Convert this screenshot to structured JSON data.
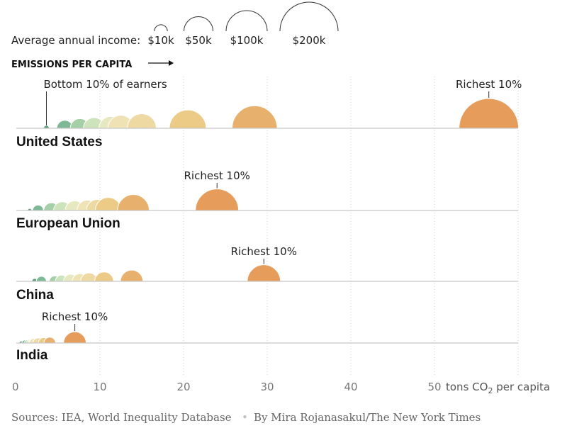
{
  "legend": {
    "label": "Average annual income:",
    "items": [
      {
        "label": "$10k",
        "income": 10
      },
      {
        "label": "$50k",
        "income": 50
      },
      {
        "label": "$100k",
        "income": 100
      },
      {
        "label": "$200k",
        "income": 200
      }
    ]
  },
  "emissions_label": "EMISSIONS PER CAPITA",
  "chart_data": {
    "type": "scatter",
    "description_encoding": "each semicircle is an income decile; x = tons CO2 per capita, radius = average annual income",
    "xlabel": "tons CO2 per capita",
    "xlim": [
      0,
      60
    ],
    "x_ticks": [
      "0",
      "10",
      "20",
      "30",
      "40",
      "50"
    ],
    "tick_values": [
      0,
      10,
      20,
      30,
      40,
      50,
      60
    ],
    "unit_label": {
      "prefix": "tons CO",
      "subscript": "2",
      "suffix": " per capita"
    },
    "grid": true,
    "colors": [
      "#5f9e7a",
      "#7fb895",
      "#a5cfa6",
      "#cde3bc",
      "#e6e8c0",
      "#efe3b5",
      "#eed9a2",
      "#eccb86",
      "#e8b06d",
      "#e69c5a"
    ],
    "series": [
      {
        "name": "United States",
        "annotations": [
          {
            "text": "Bottom 10% of earners",
            "decile": 0
          },
          {
            "text": "Richest 10%",
            "decile": 9
          }
        ],
        "deciles": [
          {
            "x": 3.6,
            "income": 2
          },
          {
            "x": 5.8,
            "income": 15
          },
          {
            "x": 7.6,
            "income": 22
          },
          {
            "x": 9.3,
            "income": 27
          },
          {
            "x": 11.3,
            "income": 33
          },
          {
            "x": 12.5,
            "income": 40
          },
          {
            "x": 15.0,
            "income": 50
          },
          {
            "x": 20.5,
            "income": 80
          },
          {
            "x": 28.5,
            "income": 120
          },
          {
            "x": 56.5,
            "income": 210
          }
        ]
      },
      {
        "name": "European Union",
        "annotations": [
          {
            "text": "Richest 10%",
            "decile": 9
          }
        ],
        "deciles": [
          {
            "x": 1.6,
            "income": 1
          },
          {
            "x": 2.6,
            "income": 7
          },
          {
            "x": 4.2,
            "income": 14
          },
          {
            "x": 5.5,
            "income": 18
          },
          {
            "x": 7.0,
            "income": 22
          },
          {
            "x": 8.5,
            "income": 25
          },
          {
            "x": 9.7,
            "income": 29
          },
          {
            "x": 11.0,
            "income": 40
          },
          {
            "x": 14.0,
            "income": 60
          },
          {
            "x": 24.0,
            "income": 110
          }
        ]
      },
      {
        "name": "China",
        "annotations": [
          {
            "text": "Richest 10%",
            "decile": 9
          }
        ],
        "deciles": [
          {
            "x": 2.2,
            "income": 2
          },
          {
            "x": 3.0,
            "income": 6
          },
          {
            "x": 4.6,
            "income": 7
          },
          {
            "x": 5.4,
            "income": 9
          },
          {
            "x": 6.5,
            "income": 12
          },
          {
            "x": 7.6,
            "income": 14
          },
          {
            "x": 8.7,
            "income": 17
          },
          {
            "x": 10.5,
            "income": 21
          },
          {
            "x": 13.8,
            "income": 30
          },
          {
            "x": 29.6,
            "income": 65
          }
        ]
      },
      {
        "name": "India",
        "annotations": [
          {
            "text": "Richest 10%",
            "decile": 9
          }
        ],
        "deciles": [
          {
            "x": 0.6,
            "income": 1
          },
          {
            "x": 1.0,
            "income": 2
          },
          {
            "x": 1.4,
            "income": 3
          },
          {
            "x": 1.7,
            "income": 4
          },
          {
            "x": 1.9,
            "income": 4
          },
          {
            "x": 2.1,
            "income": 5
          },
          {
            "x": 2.6,
            "income": 6
          },
          {
            "x": 3.3,
            "income": 7
          },
          {
            "x": 4.0,
            "income": 8
          },
          {
            "x": 7.0,
            "income": 30
          }
        ]
      }
    ]
  },
  "footer": {
    "sources": "Sources: IEA, World Inequality Database",
    "separator": "•",
    "byline": "By Mira Rojanasakul/The New York Times"
  }
}
